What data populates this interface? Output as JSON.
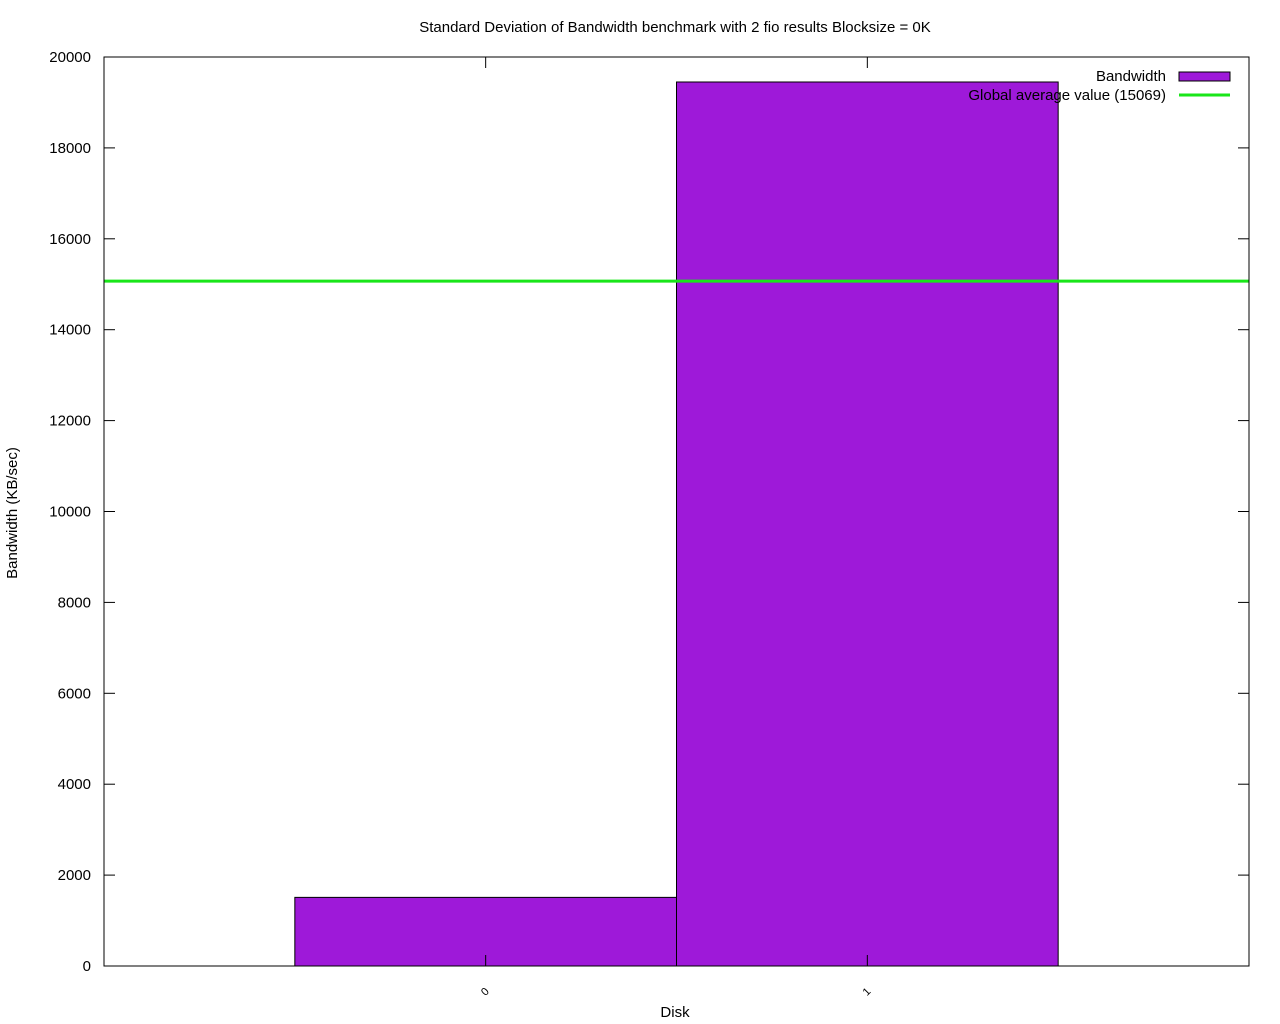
{
  "chart_data": {
    "type": "bar",
    "title": "Standard Deviation of Bandwidth benchmark with 2 fio results  Blocksize = 0K",
    "xlabel": "Disk",
    "ylabel": "Bandwidth (KB/sec)",
    "categories": [
      "0",
      "1"
    ],
    "series": [
      {
        "name": "Bandwidth",
        "values": [
          1510,
          19450
        ],
        "color": "#9e19d9"
      }
    ],
    "reference_lines": [
      {
        "name": "Global average value (15069)",
        "value": 15069,
        "color": "#19e619"
      }
    ],
    "ylim": [
      0,
      20000
    ],
    "yticks": [
      0,
      2000,
      4000,
      6000,
      8000,
      10000,
      12000,
      14000,
      16000,
      18000,
      20000
    ],
    "grid": false,
    "legend": "top-right"
  }
}
